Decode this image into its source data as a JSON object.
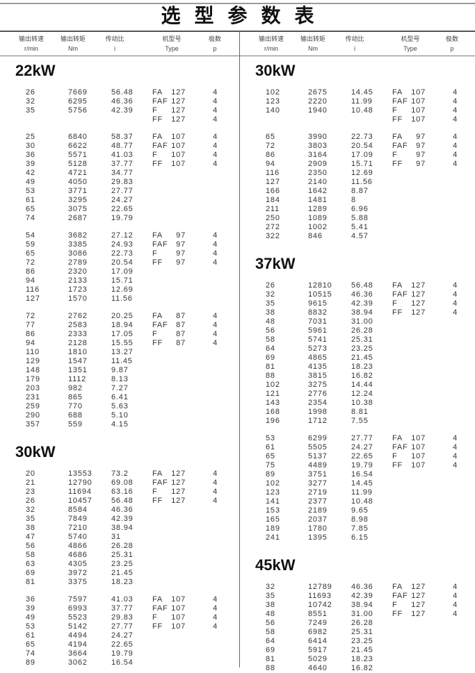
{
  "title": "选型参数表",
  "headers": [
    {
      "cn": "输出转速",
      "en": "r/min"
    },
    {
      "cn": "输出转矩",
      "en": "Nm"
    },
    {
      "cn": "传动比",
      "en": "i"
    },
    {
      "cn": "机型号",
      "en": "Type"
    },
    {
      "cn": "极数",
      "en": "p"
    }
  ],
  "left": [
    {
      "title": "22kW",
      "groups": [
        {
          "rows": [
            [
              "26",
              "7669",
              "56.48"
            ],
            [
              "32",
              "6295",
              "46.36"
            ],
            [
              "35",
              "5756",
              "42.39"
            ]
          ],
          "types": [
            [
              "FA",
              "127",
              "4"
            ],
            [
              "FAF",
              "127",
              "4"
            ],
            [
              "F",
              "127",
              "4"
            ],
            [
              "FF",
              "127",
              "4"
            ]
          ]
        },
        {
          "rows": [
            [
              "25",
              "6840",
              "58.37"
            ],
            [
              "30",
              "6622",
              "48.77"
            ],
            [
              "36",
              "5571",
              "41.03"
            ],
            [
              "39",
              "5128",
              "37.77"
            ],
            [
              "42",
              "4721",
              "34.77"
            ],
            [
              "49",
              "4050",
              "29.83"
            ],
            [
              "53",
              "3771",
              "27.77"
            ],
            [
              "61",
              "3295",
              "24.27"
            ],
            [
              "65",
              "3075",
              "22.65"
            ],
            [
              "74",
              "2687",
              "19.79"
            ]
          ],
          "types": [
            [
              "FA",
              "107",
              "4"
            ],
            [
              "FAF",
              "107",
              "4"
            ],
            [
              "F",
              "107",
              "4"
            ],
            [
              "FF",
              "107",
              "4"
            ]
          ]
        },
        {
          "rows": [
            [
              "54",
              "3682",
              "27.12"
            ],
            [
              "59",
              "3385",
              "24.93"
            ],
            [
              "65",
              "3086",
              "22.73"
            ],
            [
              "72",
              "2789",
              "20.54"
            ],
            [
              "86",
              "2320",
              "17.09"
            ],
            [
              "94",
              "2133",
              "15.71"
            ],
            [
              "116",
              "1723",
              "12.69"
            ],
            [
              "127",
              "1570",
              "11.56"
            ]
          ],
          "types": [
            [
              "FA",
              "97",
              "4"
            ],
            [
              "FAF",
              "97",
              "4"
            ],
            [
              "F",
              "97",
              "4"
            ],
            [
              "FF",
              "97",
              "4"
            ]
          ]
        },
        {
          "rows": [
            [
              "72",
              "2762",
              "20.25"
            ],
            [
              "77",
              "2583",
              "18.94"
            ],
            [
              "86",
              "2333",
              "17.05"
            ],
            [
              "94",
              "2128",
              "15.55"
            ],
            [
              "110",
              "1810",
              "13.27"
            ],
            [
              "129",
              "1547",
              "11.45"
            ],
            [
              "148",
              "1351",
              "9.87"
            ],
            [
              "179",
              "1112",
              "8.13"
            ],
            [
              "203",
              "982",
              "7.27"
            ],
            [
              "231",
              "865",
              "6.41"
            ],
            [
              "259",
              "770",
              "5.63"
            ],
            [
              "290",
              "688",
              "5.10"
            ],
            [
              "357",
              "559",
              "4.15"
            ]
          ],
          "types": [
            [
              "FA",
              "87",
              "4"
            ],
            [
              "FAF",
              "87",
              "4"
            ],
            [
              "F",
              "87",
              "4"
            ],
            [
              "FF",
              "87",
              "4"
            ]
          ]
        }
      ]
    },
    {
      "title": "30kW",
      "groups": [
        {
          "rows": [
            [
              "20",
              "13553",
              "73.2"
            ],
            [
              "21",
              "12790",
              "69.08"
            ],
            [
              "23",
              "11694",
              "63.16"
            ],
            [
              "26",
              "10457",
              "56.48"
            ],
            [
              "32",
              "8584",
              "46.36"
            ],
            [
              "35",
              "7849",
              "42.39"
            ],
            [
              "38",
              "7210",
              "38.94"
            ],
            [
              "47",
              "5740",
              "31"
            ],
            [
              "56",
              "4866",
              "26.28"
            ],
            [
              "58",
              "4686",
              "25.31"
            ],
            [
              "63",
              "4305",
              "23.25"
            ],
            [
              "69",
              "3972",
              "21.45"
            ],
            [
              "81",
              "3375",
              "18.23"
            ]
          ],
          "types": [
            [
              "FA",
              "127",
              "4"
            ],
            [
              "FAF",
              "127",
              "4"
            ],
            [
              "F",
              "127",
              "4"
            ],
            [
              "FF",
              "127",
              "4"
            ]
          ]
        },
        {
          "rows": [
            [
              "36",
              "7597",
              "41.03"
            ],
            [
              "39",
              "6993",
              "37.77"
            ],
            [
              "49",
              "5523",
              "29.83"
            ],
            [
              "53",
              "5142",
              "27.77"
            ],
            [
              "61",
              "4494",
              "24.27"
            ],
            [
              "65",
              "4194",
              "22.65"
            ],
            [
              "74",
              "3664",
              "19.79"
            ],
            [
              "89",
              "3062",
              "16.54"
            ]
          ],
          "types": [
            [
              "FA",
              "107",
              "4"
            ],
            [
              "FAF",
              "107",
              "4"
            ],
            [
              "F",
              "107",
              "4"
            ],
            [
              "FF",
              "107",
              "4"
            ]
          ]
        }
      ]
    }
  ],
  "right": [
    {
      "title": "30kW",
      "groups": [
        {
          "rows": [
            [
              "102",
              "2675",
              "14.45"
            ],
            [
              "123",
              "2220",
              "11.99"
            ],
            [
              "140",
              "1940",
              "10.48"
            ]
          ],
          "types": [
            [
              "FA",
              "107",
              "4"
            ],
            [
              "FAF",
              "107",
              "4"
            ],
            [
              "F",
              "107",
              "4"
            ],
            [
              "FF",
              "107",
              "4"
            ]
          ]
        },
        {
          "rows": [
            [
              "65",
              "3990",
              "22.73"
            ],
            [
              "72",
              "3803",
              "20.54"
            ],
            [
              "86",
              "3164",
              "17.09"
            ],
            [
              "94",
              "2909",
              "15.71"
            ],
            [
              "116",
              "2350",
              "12.69"
            ],
            [
              "127",
              "2140",
              "11.56"
            ],
            [
              "166",
              "1642",
              "8.87"
            ],
            [
              "184",
              "1481",
              "8"
            ],
            [
              "211",
              "1289",
              "6.96"
            ],
            [
              "250",
              "1089",
              "5.88"
            ],
            [
              "272",
              "1002",
              "5.41"
            ],
            [
              "322",
              "846",
              "4.57"
            ]
          ],
          "types": [
            [
              "FA",
              "97",
              "4"
            ],
            [
              "FAF",
              "97",
              "4"
            ],
            [
              "F",
              "97",
              "4"
            ],
            [
              "FF",
              "97",
              "4"
            ]
          ]
        }
      ]
    },
    {
      "title": "37kW",
      "groups": [
        {
          "rows": [
            [
              "26",
              "12810",
              "56.48"
            ],
            [
              "32",
              "10515",
              "46.36"
            ],
            [
              "35",
              "9615",
              "42.39"
            ],
            [
              "38",
              "8832",
              "38.94"
            ],
            [
              "48",
              "7031",
              "31.00"
            ],
            [
              "56",
              "5961",
              "26.28"
            ],
            [
              "58",
              "5741",
              "25.31"
            ],
            [
              "64",
              "5273",
              "23.25"
            ],
            [
              "69",
              "4865",
              "21.45"
            ],
            [
              "81",
              "4135",
              "18.23"
            ],
            [
              "88",
              "3815",
              "16.82"
            ],
            [
              "102",
              "3275",
              "14.44"
            ],
            [
              "121",
              "2776",
              "12.24"
            ],
            [
              "143",
              "2354",
              "10.38"
            ],
            [
              "168",
              "1998",
              "8.81"
            ],
            [
              "196",
              "1712",
              "7.55"
            ]
          ],
          "types": [
            [
              "FA",
              "127",
              "4"
            ],
            [
              "FAF",
              "127",
              "4"
            ],
            [
              "F",
              "127",
              "4"
            ],
            [
              "FF",
              "127",
              "4"
            ]
          ]
        },
        {
          "rows": [
            [
              "53",
              "6299",
              "27.77"
            ],
            [
              "61",
              "5505",
              "24.27"
            ],
            [
              "65",
              "5137",
              "22.65"
            ],
            [
              "75",
              "4489",
              "19.79"
            ],
            [
              "89",
              "3751",
              "16.54"
            ],
            [
              "102",
              "3277",
              "14.45"
            ],
            [
              "123",
              "2719",
              "11.99"
            ],
            [
              "141",
              "2377",
              "10.48"
            ],
            [
              "153",
              "2189",
              "9.65"
            ],
            [
              "165",
              "2037",
              "8.98"
            ],
            [
              "189",
              "1780",
              "7.85"
            ],
            [
              "241",
              "1395",
              "6.15"
            ]
          ],
          "types": [
            [
              "FA",
              "107",
              "4"
            ],
            [
              "FAF",
              "107",
              "4"
            ],
            [
              "F",
              "107",
              "4"
            ],
            [
              "FF",
              "107",
              "4"
            ]
          ]
        }
      ]
    },
    {
      "title": "45kW",
      "groups": [
        {
          "rows": [
            [
              "32",
              "12789",
              "46.36"
            ],
            [
              "35",
              "11693",
              "42.39"
            ],
            [
              "38",
              "10742",
              "38.94"
            ],
            [
              "48",
              "8551",
              "31.00"
            ],
            [
              "56",
              "7249",
              "26.28"
            ],
            [
              "58",
              "6982",
              "25.31"
            ],
            [
              "64",
              "6414",
              "23.25"
            ],
            [
              "69",
              "5917",
              "21.45"
            ],
            [
              "81",
              "5029",
              "18.23"
            ],
            [
              "88",
              "4640",
              "16.82"
            ]
          ],
          "types": [
            [
              "FA",
              "127",
              "4"
            ],
            [
              "FAF",
              "127",
              "4"
            ],
            [
              "F",
              "127",
              "4"
            ],
            [
              "FF",
              "127",
              "4"
            ]
          ]
        }
      ]
    }
  ]
}
